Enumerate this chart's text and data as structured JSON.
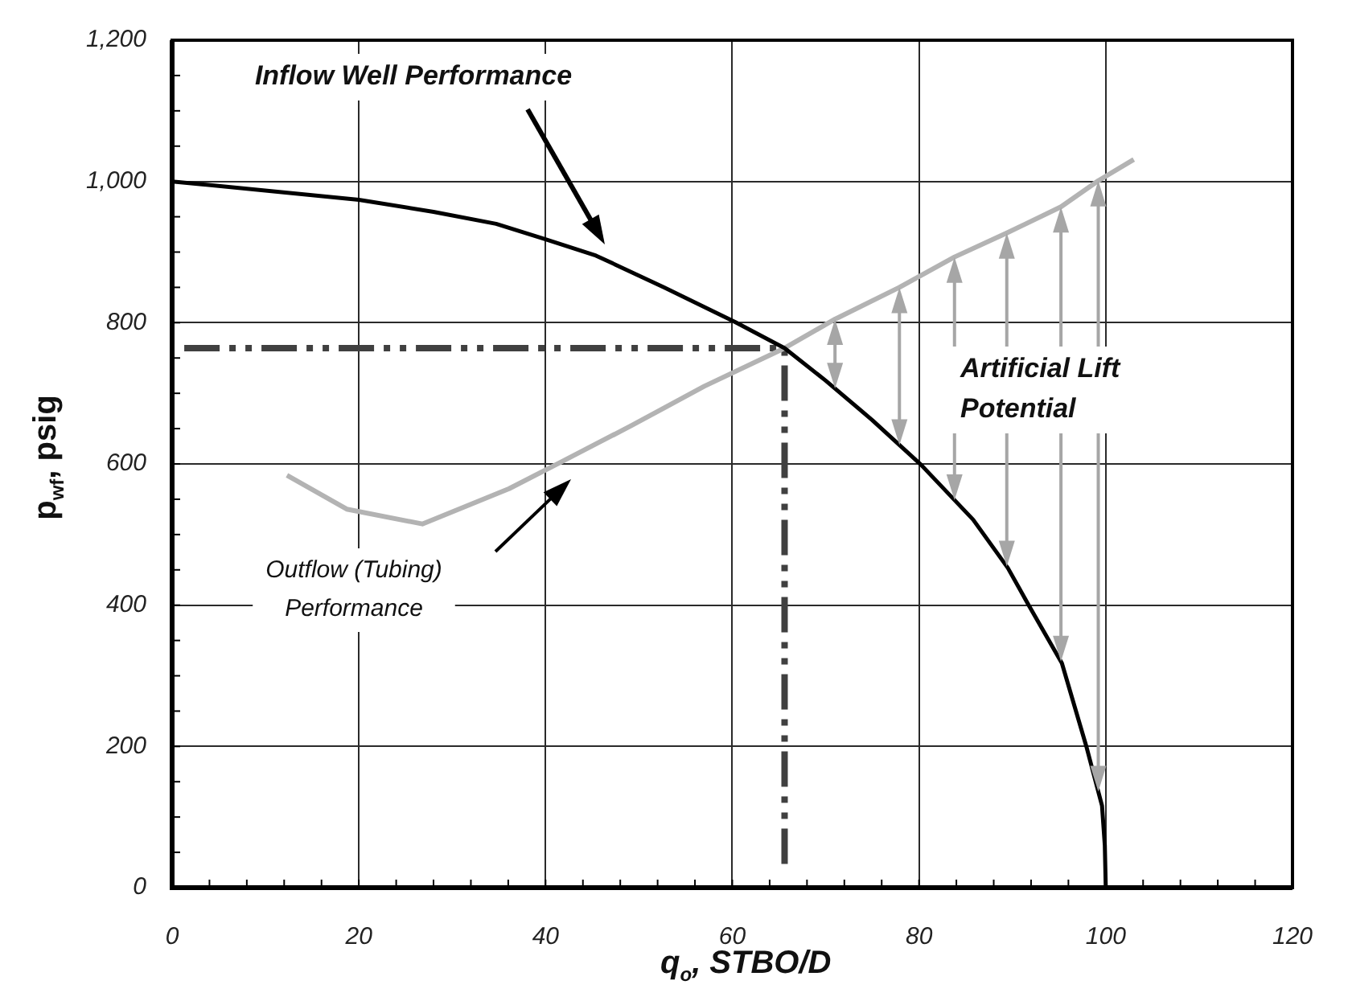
{
  "chart_data": {
    "type": "line",
    "xlabel": "q$_{o}$, STBO/D",
    "ylabel": "p$_{wf}$, psig",
    "series": [
      {
        "color": "#000000",
        "x": [
          0,
          20,
          28,
          34.7,
          40,
          45.4,
          52.7,
          60.3,
          65.6,
          70,
          75,
          80.2,
          85.8,
          89.5,
          91.7,
          95.3,
          97.9,
          99.6,
          99.9,
          100
        ],
        "values": [
          1000,
          974,
          957,
          940,
          918,
          895,
          850,
          801,
          764,
          718,
          662,
          599,
          521,
          453,
          401,
          318,
          201,
          116,
          60,
          0
        ]
      },
      {
        "color": "#b3b3b3",
        "x": [
          12.3,
          18.7,
          26.8,
          36.1,
          41.7,
          49.3,
          57,
          65.6,
          71,
          77.9,
          83.8,
          89.4,
          95.2,
          99.2,
          103
        ],
        "values": [
          584,
          536,
          515,
          565,
          603,
          655,
          710,
          764,
          805,
          850,
          893,
          927,
          964,
          1001,
          1031
        ]
      },
      {
        "color": "#404040",
        "line_style": "dashed",
        "x": [
          1.3,
          65.6,
          65.6
        ],
        "values": [
          764,
          764,
          26
        ]
      }
    ],
    "xlim": [
      0,
      120
    ],
    "xticks": [
      0,
      {
        "value": 4,
        "label": null
      },
      {
        "value": 8,
        "label": null
      },
      {
        "value": 12,
        "label": null
      },
      {
        "value": 16,
        "label": null
      },
      20,
      {
        "value": 24,
        "label": null
      },
      {
        "value": 28,
        "label": null
      },
      {
        "value": 32,
        "label": null
      },
      {
        "value": 36,
        "label": null
      },
      40,
      {
        "value": 44,
        "label": null
      },
      {
        "value": 48,
        "label": null
      },
      {
        "value": 52,
        "label": null
      },
      {
        "value": 56,
        "label": null
      },
      60,
      {
        "value": 64,
        "label": null
      },
      {
        "value": 68,
        "label": null
      },
      {
        "value": 72,
        "label": null
      },
      {
        "value": 76,
        "label": null
      },
      80,
      {
        "value": 84,
        "label": null
      },
      {
        "value": 88,
        "label": null
      },
      {
        "value": 92,
        "label": null
      },
      {
        "value": 96,
        "label": null
      },
      100,
      {
        "value": 104,
        "label": null
      },
      {
        "value": 108,
        "label": null
      },
      {
        "value": 112,
        "label": null
      },
      {
        "value": 116,
        "label": null
      },
      120
    ],
    "ylim": [
      0,
      1200
    ],
    "yticks": [
      0,
      {
        "value": 50,
        "label": null
      },
      {
        "value": 100,
        "label": null
      },
      {
        "value": 150,
        "label": null
      },
      200,
      {
        "value": 250,
        "label": null
      },
      {
        "value": 300,
        "label": null
      },
      {
        "value": 350,
        "label": null
      },
      400,
      {
        "value": 450,
        "label": null
      },
      {
        "value": 500,
        "label": null
      },
      {
        "value": 550,
        "label": null
      },
      600,
      {
        "value": 650,
        "label": null
      },
      {
        "value": 700,
        "label": null
      },
      {
        "value": 750,
        "label": null
      },
      800,
      {
        "value": 850,
        "label": null
      },
      {
        "value": 900,
        "label": null
      },
      {
        "value": 950,
        "label": null
      },
      {
        "value": 1000,
        "label": "1,000"
      },
      {
        "value": 1050,
        "label": null
      },
      {
        "value": 1100,
        "label": null
      },
      {
        "value": 1150,
        "label": null
      },
      {
        "value": 1200,
        "label": "1,200"
      }
    ],
    "grid": true,
    "annotations": [
      "Inflow Well Performance",
      "Outflow (Tubing) Performance",
      "Artificial Lift Potential"
    ]
  }
}
